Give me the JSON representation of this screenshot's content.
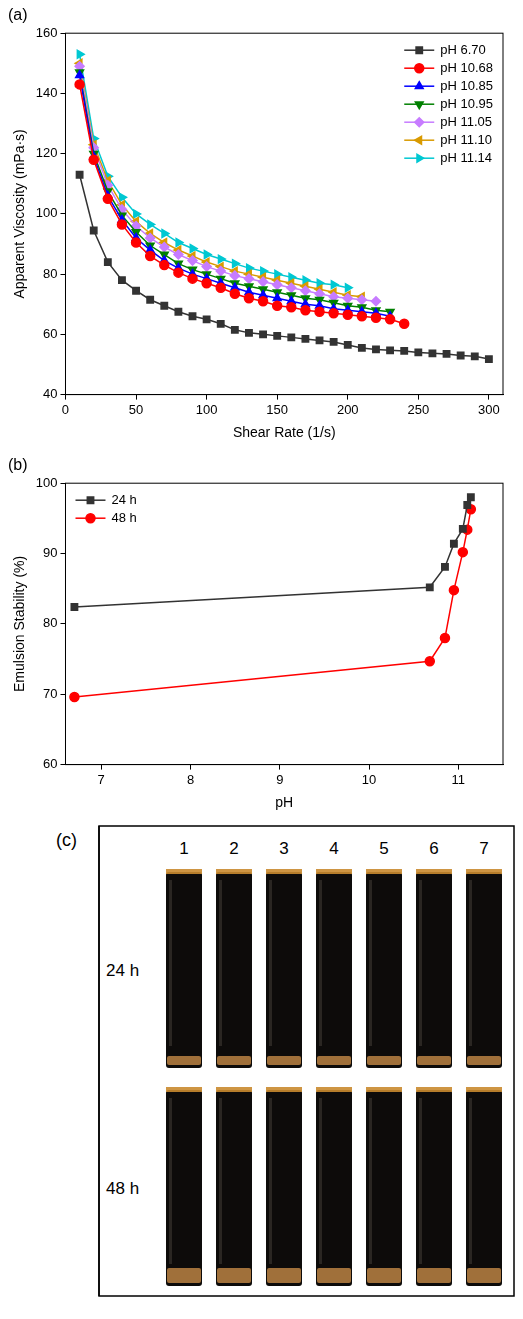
{
  "chart_data": [
    {
      "type": "line",
      "title": "(a)",
      "x_label": "Shear Rate (1/s)",
      "y_label": "Apparent Viscosity (mPa·s)",
      "xlim": [
        0,
        310
      ],
      "xticks": [
        0,
        50,
        100,
        150,
        200,
        250,
        300
      ],
      "ylim": [
        40,
        160
      ],
      "yticks": [
        40,
        60,
        80,
        100,
        120,
        140,
        160
      ],
      "grid": false,
      "legend": "upper right",
      "series": [
        {
          "name": "pH 6.70",
          "color": "#333333",
          "marker": "square",
          "x": [
            10,
            20,
            30,
            40,
            50,
            60,
            70,
            80,
            90,
            100,
            110,
            120,
            130,
            140,
            150,
            160,
            170,
            180,
            190,
            200,
            210,
            220,
            230,
            240,
            250,
            260,
            270,
            280,
            290,
            300
          ],
          "values": [
            113,
            94.5,
            84,
            78,
            74.5,
            71.5,
            69.5,
            67.5,
            66,
            65,
            63.5,
            61.5,
            60.5,
            60,
            59.5,
            59,
            58.5,
            58,
            57.5,
            56.5,
            55.5,
            55,
            54.7,
            54.5,
            54,
            53.7,
            53.5,
            53,
            52.7,
            51.8
          ]
        },
        {
          "name": "pH 10.68",
          "color": "#ff0000",
          "marker": "circle",
          "x": [
            10,
            20,
            30,
            40,
            50,
            60,
            70,
            80,
            90,
            100,
            110,
            120,
            130,
            140,
            150,
            160,
            170,
            180,
            190,
            200,
            210,
            220,
            230,
            240
          ],
          "values": [
            143,
            118,
            105,
            96.5,
            90.5,
            86,
            83,
            80.5,
            78.5,
            77,
            75.5,
            73.5,
            72,
            71,
            69.5,
            69,
            68,
            67.5,
            67,
            66.5,
            66,
            65.5,
            65,
            63.5
          ]
        },
        {
          "name": "pH 10.85",
          "color": "#0000ff",
          "marker": "triangle",
          "x": [
            10,
            20,
            30,
            40,
            50,
            60,
            70,
            80,
            90,
            100,
            110,
            120,
            130,
            140,
            150,
            160,
            170,
            180,
            190,
            200,
            210,
            220,
            230
          ],
          "values": [
            146,
            119,
            106,
            98,
            92,
            88,
            84.5,
            82,
            80,
            78.5,
            77,
            75.5,
            74,
            73,
            72,
            71,
            70,
            69.5,
            68.5,
            68,
            67.5,
            67,
            66
          ]
        },
        {
          "name": "pH 10.95",
          "color": "#008000",
          "marker": "triangle-down",
          "x": [
            10,
            20,
            30,
            40,
            50,
            60,
            70,
            80,
            90,
            100,
            110,
            120,
            130,
            140,
            150,
            160,
            170,
            180,
            190,
            200,
            210,
            220,
            230
          ],
          "values": [
            147,
            120,
            107.5,
            99.5,
            94,
            89.5,
            86.5,
            83.5,
            81.5,
            80,
            78.5,
            77,
            76,
            75,
            74,
            73,
            72,
            71.5,
            70.5,
            69.5,
            69,
            68,
            67.5
          ]
        },
        {
          "name": "pH 11.05",
          "color": "#c77cff",
          "marker": "diamond",
          "x": [
            10,
            20,
            30,
            40,
            50,
            60,
            70,
            80,
            90,
            100,
            110,
            120,
            130,
            140,
            150,
            160,
            170,
            180,
            190,
            200,
            210,
            220
          ],
          "values": [
            149,
            122,
            109.5,
            101.5,
            96,
            92,
            89,
            86.5,
            84.5,
            82.5,
            81,
            79.5,
            78.5,
            77.5,
            76.5,
            75.5,
            74.5,
            73.5,
            72.5,
            72,
            71.5,
            71
          ]
        },
        {
          "name": "pH 11.10",
          "color": "#d99a00",
          "marker": "triangle-left",
          "x": [
            10,
            20,
            30,
            40,
            50,
            60,
            70,
            80,
            90,
            100,
            110,
            120,
            130,
            140,
            150,
            160,
            170,
            180,
            190,
            200,
            210
          ],
          "values": [
            150,
            123,
            111,
            103,
            97.5,
            93.5,
            90.5,
            88,
            86,
            84,
            82.5,
            81,
            80,
            79,
            78,
            77,
            76,
            75,
            74,
            73,
            72.5
          ]
        },
        {
          "name": "pH 11.14",
          "color": "#00c8d2",
          "marker": "triangle-right",
          "x": [
            10,
            20,
            30,
            40,
            50,
            60,
            70,
            80,
            90,
            100,
            110,
            120,
            130,
            140,
            150,
            160,
            170,
            180,
            190,
            200
          ],
          "values": [
            153,
            125,
            112.5,
            105.5,
            100,
            96.5,
            93.5,
            90.5,
            88.5,
            86.5,
            85,
            83.5,
            82,
            81,
            80,
            79,
            78,
            77,
            76.5,
            75.5
          ]
        }
      ]
    },
    {
      "type": "line",
      "title": "(b)",
      "x_label": "pH",
      "y_label": "Emulsion Stability (%)",
      "xlim": [
        6.6,
        11.5
      ],
      "xticks": [
        7,
        8,
        9,
        10,
        11
      ],
      "ylim": [
        60,
        100
      ],
      "yticks": [
        60,
        70,
        80,
        90,
        100
      ],
      "grid": false,
      "legend": "upper left",
      "series": [
        {
          "name": "24 h",
          "color": "#333333",
          "marker": "square",
          "x": [
            6.7,
            10.68,
            10.85,
            10.95,
            11.05,
            11.1,
            11.14
          ],
          "values": [
            82.4,
            85.2,
            88.1,
            91.4,
            93.5,
            96.9,
            98.0
          ]
        },
        {
          "name": "48 h",
          "color": "#ff0000",
          "marker": "circle",
          "x": [
            6.7,
            10.68,
            10.85,
            10.95,
            11.05,
            11.1,
            11.14
          ],
          "values": [
            69.6,
            74.7,
            78.0,
            84.8,
            90.2,
            93.4,
            96.3
          ]
        }
      ]
    }
  ],
  "photo": {
    "label": "(c)",
    "tubes": [
      "1",
      "2",
      "3",
      "4",
      "5",
      "6",
      "7"
    ],
    "rows": [
      "24 h",
      "48 h"
    ]
  }
}
